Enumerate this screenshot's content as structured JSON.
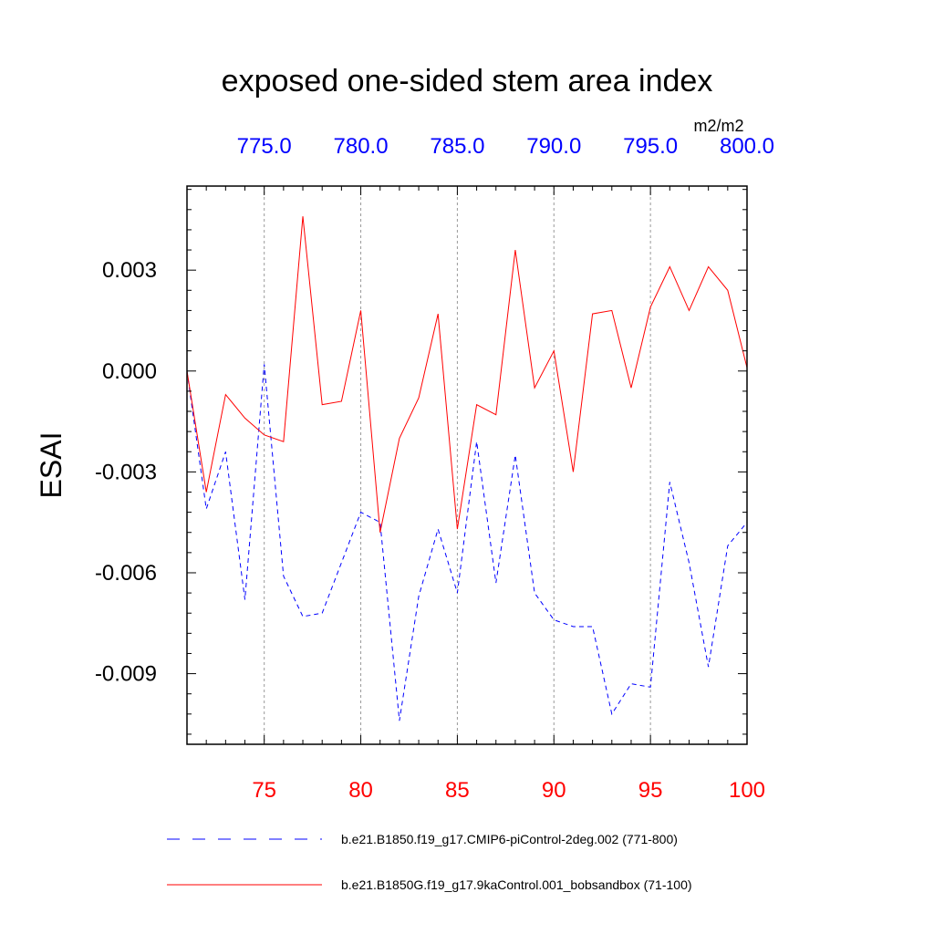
{
  "chart_data": {
    "type": "line",
    "title": "exposed one-sided stem area index",
    "units": "m2/m2",
    "ylabel": "ESAI",
    "ylim": [
      -0.0111,
      0.0055
    ],
    "yticks": [
      {
        "value": 0.003,
        "label": "0.003"
      },
      {
        "value": 0.0,
        "label": "0.000"
      },
      {
        "value": -0.003,
        "label": "-0.003"
      },
      {
        "value": -0.006,
        "label": "-0.006"
      },
      {
        "value": -0.009,
        "label": "-0.009"
      }
    ],
    "x_bottom": {
      "range": [
        71,
        100
      ],
      "ticks": [
        {
          "value": 75,
          "label": "75"
        },
        {
          "value": 80,
          "label": "80"
        },
        {
          "value": 85,
          "label": "85"
        },
        {
          "value": 90,
          "label": "90"
        },
        {
          "value": 95,
          "label": "95"
        },
        {
          "value": 100,
          "label": "100"
        }
      ],
      "color": "#ff0000"
    },
    "x_top": {
      "range": [
        771,
        800
      ],
      "ticks": [
        {
          "value": 775,
          "label": "775.0"
        },
        {
          "value": 780,
          "label": "780.0"
        },
        {
          "value": 785,
          "label": "785.0"
        },
        {
          "value": 790,
          "label": "790.0"
        },
        {
          "value": 795,
          "label": "795.0"
        },
        {
          "value": 800,
          "label": "800.0"
        }
      ],
      "color": "#0000ff"
    },
    "gridlines_x": [
      75,
      80,
      85,
      90,
      95
    ],
    "series": [
      {
        "name": "b.e21.B1850.f19_g17.CMIP6-piControl-2deg.002 (771-800)",
        "color": "#0000ff",
        "style": "dashed",
        "x": [
          71,
          72,
          73,
          74,
          75,
          76,
          77,
          78,
          79,
          80,
          81,
          82,
          83,
          84,
          85,
          86,
          87,
          88,
          89,
          90,
          91,
          92,
          93,
          94,
          95,
          96,
          97,
          98,
          99,
          100
        ],
        "values": [
          0.0,
          -0.0041,
          -0.0024,
          -0.0068,
          0.0002,
          -0.0061,
          -0.0073,
          -0.0072,
          -0.0057,
          -0.0042,
          -0.0045,
          -0.0104,
          -0.0067,
          -0.0047,
          -0.0066,
          -0.0021,
          -0.0063,
          -0.0025,
          -0.0066,
          -0.0074,
          -0.0076,
          -0.0076,
          -0.0102,
          -0.0093,
          -0.0094,
          -0.0033,
          -0.0057,
          -0.0088,
          -0.0052,
          -0.0045
        ]
      },
      {
        "name": "b.e21.B1850G.f19_g17.9kaControl.001_bobsandbox (71-100)",
        "color": "#ff0000",
        "style": "solid",
        "x": [
          71,
          72,
          73,
          74,
          75,
          76,
          77,
          78,
          79,
          80,
          81,
          82,
          83,
          84,
          85,
          86,
          87,
          88,
          89,
          90,
          91,
          92,
          93,
          94,
          95,
          96,
          97,
          98,
          99,
          100
        ],
        "values": [
          0.0,
          -0.0036,
          -0.0007,
          -0.0014,
          -0.0019,
          -0.0021,
          0.0046,
          -0.001,
          -0.0009,
          0.0018,
          -0.0048,
          -0.002,
          -0.0008,
          0.0017,
          -0.0047,
          -0.001,
          -0.0013,
          0.0036,
          -0.0005,
          0.0006,
          -0.003,
          0.0017,
          0.0018,
          -0.0005,
          0.0019,
          0.0031,
          0.0018,
          0.0031,
          0.0024,
          0.0001
        ]
      }
    ]
  }
}
